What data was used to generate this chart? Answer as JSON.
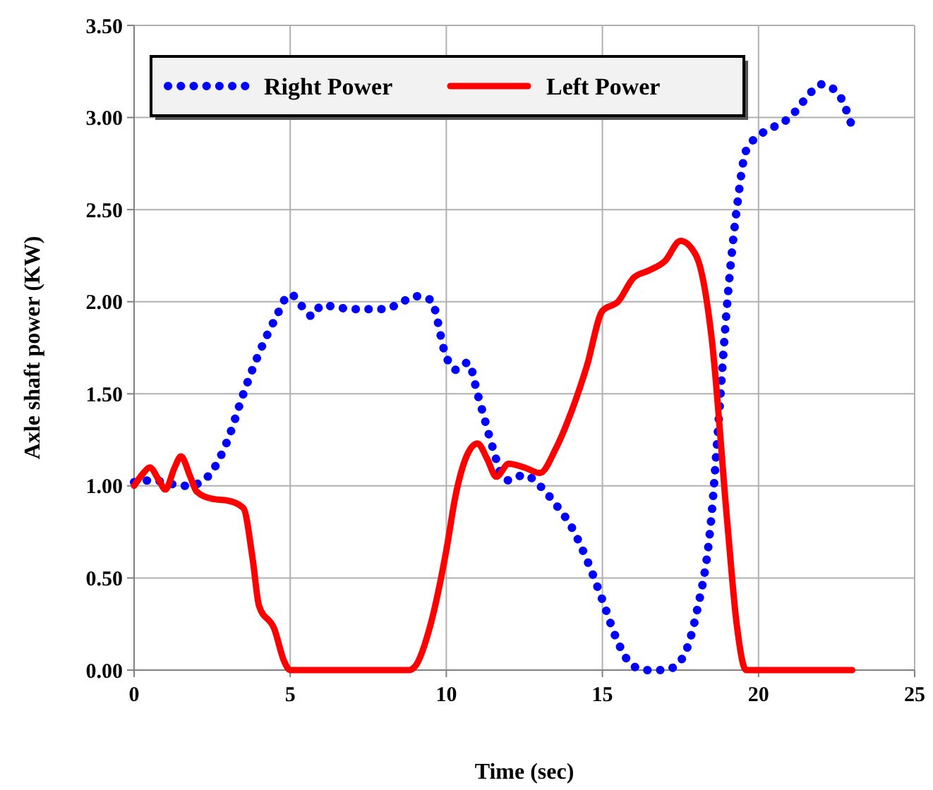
{
  "chart_data": {
    "type": "line",
    "xlabel": "Time (sec)",
    "ylabel": "Axle shaft power (KW)",
    "xlim": [
      0,
      25
    ],
    "xticks": [
      0,
      5,
      10,
      15,
      20,
      25
    ],
    "ylim": [
      0,
      3.5
    ],
    "yticks": [
      {
        "value": 0,
        "label": "0.00"
      },
      {
        "value": 0.5,
        "label": "0.50"
      },
      {
        "value": 1,
        "label": "1.00"
      },
      {
        "value": 1.5,
        "label": "1.50"
      },
      {
        "value": 2,
        "label": "2.00"
      },
      {
        "value": 2.5,
        "label": "2.50"
      },
      {
        "value": 3,
        "label": "3.00"
      },
      {
        "value": 3.5,
        "label": "3.50"
      }
    ],
    "grid": true,
    "legend": "top left",
    "marker": "none",
    "series": [
      {
        "name": "Right Power",
        "color": "#0000ff",
        "line_style": "dotted",
        "x": [
          0,
          0.5,
          1,
          1.5,
          2,
          2.5,
          3,
          3.5,
          4,
          4.5,
          5,
          5.5,
          5.7,
          6,
          7,
          8,
          8.5,
          9,
          9.5,
          10,
          10.3,
          10.7,
          11,
          11.5,
          11.8,
          12,
          12.5,
          13,
          13.5,
          14,
          14.5,
          15,
          15.5,
          16,
          16.5,
          17,
          17.5,
          18,
          18.5,
          18.7,
          19,
          19.3,
          19.6,
          20,
          20.5,
          21,
          21.5,
          22,
          22.5,
          23
        ],
        "values": [
          1.02,
          1.03,
          1.02,
          1.0,
          1.01,
          1.08,
          1.25,
          1.5,
          1.72,
          1.9,
          2.04,
          1.95,
          1.92,
          1.98,
          1.96,
          1.96,
          1.99,
          2.03,
          2.01,
          1.7,
          1.63,
          1.67,
          1.5,
          1.2,
          1.05,
          1.03,
          1.06,
          1.0,
          0.9,
          0.78,
          0.6,
          0.38,
          0.15,
          0.02,
          0.0,
          0.0,
          0.05,
          0.3,
          0.85,
          1.3,
          2.0,
          2.5,
          2.82,
          2.9,
          2.95,
          3.0,
          3.1,
          3.18,
          3.14,
          2.95
        ]
      },
      {
        "name": "Left Power",
        "color": "#ff0000",
        "line_style": "solid",
        "x": [
          0,
          0.3,
          0.5,
          0.8,
          1,
          1.3,
          1.5,
          1.8,
          2,
          2.5,
          3,
          3.5,
          3.8,
          4,
          4.5,
          4.8,
          5,
          6,
          8,
          8.8,
          9,
          9.5,
          10,
          10.3,
          10.7,
          11,
          11.3,
          11.6,
          12,
          12.5,
          13,
          13.5,
          14,
          14.5,
          15,
          15.5,
          16,
          16.5,
          17,
          17.5,
          18,
          18.5,
          19,
          19.3,
          19.6,
          20,
          23
        ],
        "values": [
          1.0,
          1.07,
          1.1,
          1.03,
          0.98,
          1.1,
          1.16,
          1.05,
          0.97,
          0.93,
          0.92,
          0.88,
          0.6,
          0.35,
          0.22,
          0.05,
          0.0,
          0.0,
          0.0,
          0.0,
          0.02,
          0.25,
          0.65,
          0.95,
          1.18,
          1.23,
          1.15,
          1.05,
          1.12,
          1.1,
          1.07,
          1.2,
          1.4,
          1.65,
          1.95,
          2.0,
          2.13,
          2.17,
          2.22,
          2.33,
          2.25,
          1.8,
          0.8,
          0.25,
          0.0,
          0.0,
          0.0
        ]
      }
    ]
  }
}
